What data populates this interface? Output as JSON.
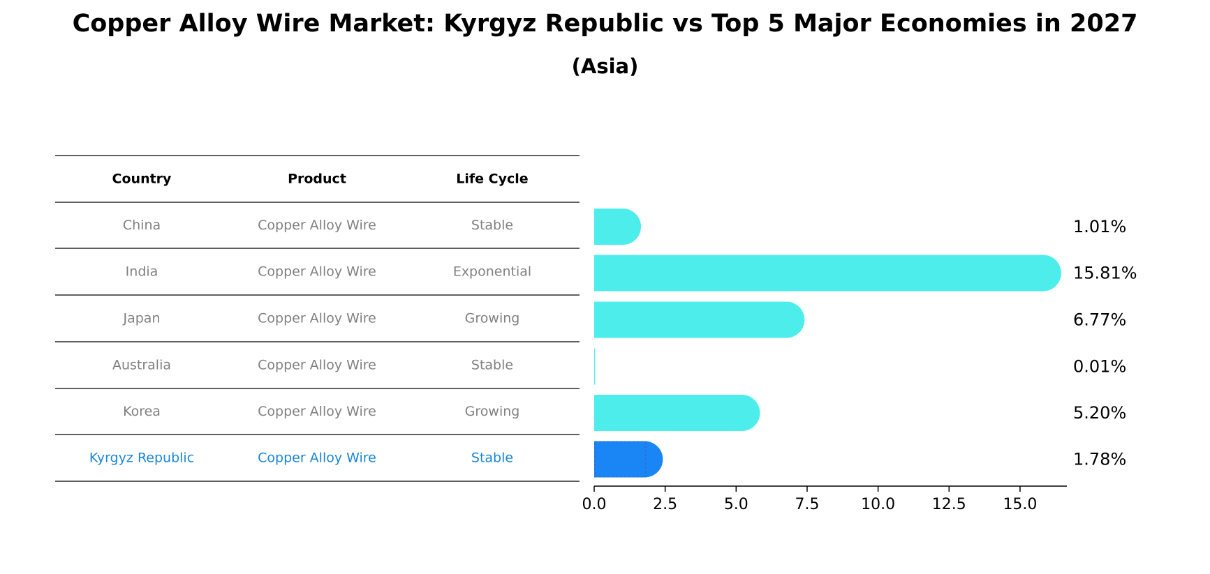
{
  "title": "Copper Alloy Wire Market: Kyrgyz Republic vs Top 5 Major Economies in 2027",
  "subtitle": "(Asia)",
  "colors": {
    "bar": "#4dedec",
    "highlight_bar": "#1a86f5",
    "highlight_text": "#1a86d6",
    "muted_text": "#808080"
  },
  "table": {
    "headers": [
      "Country",
      "Product",
      "Life Cycle"
    ],
    "rows": [
      {
        "country": "China",
        "product": "Copper Alloy Wire",
        "life_cycle": "Stable"
      },
      {
        "country": "India",
        "product": "Copper Alloy Wire",
        "life_cycle": "Exponential"
      },
      {
        "country": "Japan",
        "product": "Copper Alloy Wire",
        "life_cycle": "Growing"
      },
      {
        "country": "Australia",
        "product": "Copper Alloy Wire",
        "life_cycle": "Stable"
      },
      {
        "country": "Korea",
        "product": "Copper Alloy Wire",
        "life_cycle": "Growing"
      },
      {
        "country": "Kyrgyz Republic",
        "product": "Copper Alloy Wire",
        "life_cycle": "Stable",
        "highlight": true
      }
    ]
  },
  "chart_data": {
    "type": "bar",
    "orientation": "horizontal",
    "categories": [
      "China",
      "India",
      "Japan",
      "Australia",
      "Korea",
      "Kyrgyz Republic"
    ],
    "values": [
      1.01,
      15.81,
      6.77,
      0.01,
      5.2,
      1.78
    ],
    "value_labels": [
      "1.01%",
      "15.81%",
      "6.77%",
      "0.01%",
      "5.20%",
      "1.78%"
    ],
    "highlight_category": "Kyrgyz Republic",
    "xlim": [
      0,
      16.6
    ],
    "xticks": [
      0.0,
      2.5,
      5.0,
      7.5,
      10.0,
      12.5,
      15.0
    ],
    "xtick_labels": [
      "0.0",
      "2.5",
      "5.0",
      "7.5",
      "10.0",
      "12.5",
      "15.0"
    ],
    "grid": false
  }
}
